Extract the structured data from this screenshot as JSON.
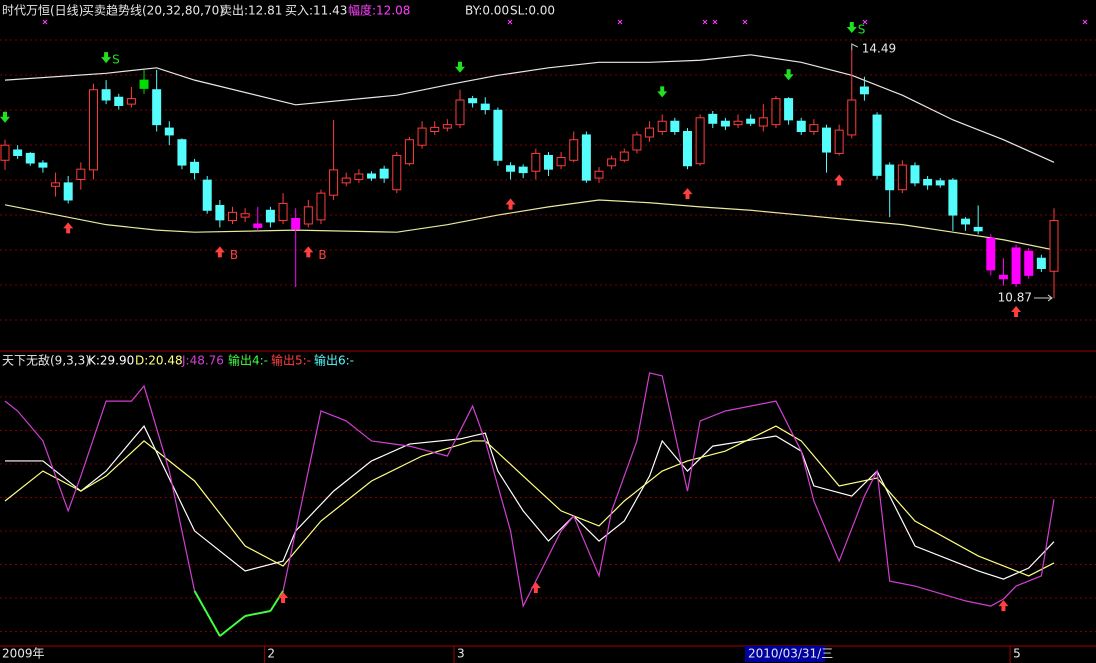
{
  "chart_data": [
    {
      "type": "candlestick",
      "title": "时代万恒(日线)",
      "indicator": "买卖趋势线(20,32,80,70)",
      "stats": [
        "卖出:12.81",
        "买入:11.43",
        "幅度:12.08",
        "BY:0.00",
        "SL:0.00"
      ],
      "open": [
        12.88,
        13.03,
        12.98,
        12.84,
        12.5,
        12.55,
        12.6,
        12.74,
        13.91,
        13.8,
        13.7,
        14.05,
        13.91,
        13.35,
        13.18,
        12.85,
        12.59,
        12.22,
        12.0,
        12.05,
        11.95,
        12.15,
        12.0,
        12.03,
        11.95,
        12.01,
        12.37,
        12.55,
        12.6,
        12.68,
        12.75,
        12.45,
        12.83,
        13.1,
        13.3,
        13.35,
        13.4,
        13.78,
        13.7,
        13.61,
        12.8,
        12.78,
        12.72,
        12.95,
        12.8,
        12.88,
        13.25,
        12.62,
        12.8,
        12.88,
        13.03,
        13.22,
        13.3,
        13.45,
        13.3,
        12.83,
        13.55,
        13.45,
        13.4,
        13.48,
        13.38,
        13.4,
        13.78,
        13.45,
        13.3,
        13.35,
        12.98,
        13.25,
        13.95,
        13.54,
        12.81,
        12.45,
        12.8,
        12.6,
        12.58,
        12.59,
        12.02,
        11.9,
        11.74,
        11.2,
        11.6,
        11.55,
        11.45,
        11.26
      ],
      "high": [
        13.18,
        13.1,
        13.0,
        12.88,
        12.7,
        12.65,
        12.85,
        14.0,
        14.05,
        13.85,
        13.95,
        14.2,
        14.2,
        13.45,
        13.2,
        12.9,
        12.65,
        12.3,
        12.2,
        12.18,
        12.2,
        12.2,
        12.4,
        12.18,
        12.3,
        12.45,
        13.47,
        12.7,
        12.75,
        12.72,
        12.8,
        13.0,
        13.22,
        13.45,
        13.45,
        13.48,
        13.91,
        13.82,
        13.8,
        13.65,
        12.85,
        12.82,
        13.05,
        13.0,
        13.0,
        13.3,
        13.3,
        12.78,
        12.95,
        13.05,
        13.3,
        13.45,
        13.55,
        13.5,
        13.35,
        13.55,
        13.6,
        13.5,
        13.55,
        13.55,
        13.7,
        13.82,
        13.8,
        13.5,
        13.48,
        13.4,
        13.4,
        14.49,
        14.1,
        13.58,
        12.85,
        12.88,
        12.85,
        12.65,
        12.62,
        12.62,
        12.05,
        12.22,
        11.8,
        11.45,
        11.65,
        11.6,
        11.5,
        12.18
      ],
      "low": [
        12.74,
        12.9,
        12.8,
        12.7,
        12.35,
        12.25,
        12.45,
        12.6,
        13.7,
        13.62,
        13.65,
        13.85,
        13.3,
        13.1,
        12.75,
        12.6,
        12.1,
        11.9,
        11.95,
        11.98,
        11.85,
        11.9,
        11.95,
        11.03,
        11.9,
        11.95,
        12.3,
        12.5,
        12.55,
        12.58,
        12.55,
        12.4,
        12.8,
        13.05,
        13.25,
        13.3,
        13.35,
        13.65,
        13.55,
        12.8,
        12.6,
        12.62,
        12.6,
        12.65,
        12.75,
        12.85,
        12.55,
        12.55,
        12.75,
        12.85,
        12.98,
        13.15,
        13.25,
        13.25,
        12.75,
        12.8,
        13.35,
        13.32,
        13.35,
        13.38,
        13.3,
        13.35,
        13.4,
        13.25,
        13.25,
        12.7,
        12.95,
        13.2,
        13.75,
        12.6,
        12.05,
        12.4,
        12.5,
        12.45,
        12.48,
        11.85,
        11.85,
        11.8,
        11.2,
        11.05,
        11.03,
        11.15,
        11.25,
        10.87
      ],
      "close": [
        13.1,
        12.95,
        12.84,
        12.78,
        12.55,
        12.3,
        12.75,
        13.91,
        13.76,
        13.68,
        13.78,
        13.93,
        13.4,
        13.25,
        12.81,
        12.7,
        12.15,
        12.01,
        12.12,
        12.1,
        11.9,
        11.98,
        12.25,
        11.88,
        12.2,
        12.4,
        12.74,
        12.62,
        12.68,
        12.62,
        12.62,
        12.95,
        13.18,
        13.35,
        13.36,
        13.4,
        13.76,
        13.72,
        13.62,
        12.88,
        12.72,
        12.7,
        12.98,
        12.75,
        12.92,
        13.18,
        12.59,
        12.72,
        12.9,
        13.0,
        13.25,
        13.35,
        13.45,
        13.3,
        12.8,
        13.5,
        13.42,
        13.38,
        13.45,
        13.42,
        13.5,
        13.78,
        13.47,
        13.3,
        13.4,
        13.0,
        13.32,
        13.76,
        13.85,
        12.66,
        12.45,
        12.81,
        12.55,
        12.52,
        12.52,
        12.08,
        11.95,
        11.85,
        11.28,
        11.15,
        11.08,
        11.2,
        11.3,
        12.0
      ],
      "up_color": "#ff3c3c",
      "down_color": "#54fcfc",
      "highlights": [
        {
          "color": "#ff00ff",
          "indices": [
            20,
            23,
            78,
            79,
            80,
            81
          ]
        },
        {
          "color": "#00dd00",
          "indices": [
            11
          ]
        }
      ],
      "bands": [
        {
          "color": "#e8e8e8",
          "x": [
            0,
            8,
            12,
            15,
            23,
            31,
            35,
            39,
            43,
            47,
            51,
            55,
            59,
            63,
            67,
            71,
            75,
            79,
            83
          ],
          "values": [
            14.05,
            14.15,
            14.23,
            14.05,
            13.69,
            13.83,
            13.98,
            14.12,
            14.23,
            14.31,
            14.31,
            14.34,
            14.42,
            14.31,
            14.12,
            13.83,
            13.47,
            13.18,
            12.85
          ]
        },
        {
          "color": "#e8e8a0",
          "x": [
            0,
            8,
            12,
            15,
            23,
            31,
            35,
            39,
            43,
            47,
            51,
            55,
            59,
            63,
            67,
            71,
            75,
            79,
            83
          ],
          "values": [
            12.23,
            11.94,
            11.86,
            11.83,
            11.86,
            11.83,
            11.94,
            12.08,
            12.2,
            12.3,
            12.26,
            12.2,
            12.15,
            12.08,
            12.01,
            11.94,
            11.83,
            11.72,
            11.57
          ]
        }
      ],
      "sell_color": "#20e020",
      "buy_color": "#ff4040",
      "sell_signals": [
        {
          "index": 0
        },
        {
          "index": 8,
          "label": "S"
        },
        {
          "index": 36
        },
        {
          "index": 52
        },
        {
          "index": 62
        },
        {
          "index": 67,
          "label": "S"
        }
      ],
      "buy_signals": [
        {
          "index": 5
        },
        {
          "index": 17,
          "label": "B"
        },
        {
          "index": 24,
          "label": "B"
        },
        {
          "index": 40
        },
        {
          "index": 54
        },
        {
          "index": 66
        },
        {
          "index": 80
        }
      ],
      "xlim": [
        0,
        83
      ],
      "ylim": [
        10.11,
        15.22
      ],
      "grid": true
    },
    {
      "type": "line",
      "title": "天下无敌(9,3,3)",
      "stats": [
        "输出4:-",
        "输出5:-",
        "输出6:-"
      ],
      "series": [
        {
          "name": "K:29.90",
          "color": "#ffffff",
          "x": [
            0,
            3,
            6,
            8,
            10,
            11,
            15,
            19,
            22,
            23,
            26,
            29,
            32,
            36,
            38,
            39,
            41,
            43,
            45,
            47,
            49,
            51,
            52,
            54,
            56,
            61,
            63,
            64,
            67,
            69,
            72,
            77,
            79,
            81,
            83
          ],
          "values": [
            65.8,
            65.8,
            52.4,
            61.3,
            74.7,
            81.3,
            34.7,
            16.9,
            21.3,
            34.7,
            52.4,
            65.8,
            73.3,
            75.6,
            78.2,
            61.3,
            43.6,
            30.2,
            41.3,
            30.2,
            39.1,
            59.1,
            74.7,
            61.3,
            72.4,
            76.9,
            70.2,
            54.7,
            50.2,
            61.3,
            28.0,
            16.9,
            13.3,
            18.2,
            29.9
          ]
        },
        {
          "name": "D:20.48",
          "color": "#ffff80",
          "x": [
            0,
            3,
            6,
            8,
            11,
            15,
            19,
            22,
            25,
            29,
            33,
            37,
            38,
            41,
            44,
            47,
            49,
            52,
            54,
            57,
            61,
            63,
            66,
            69,
            72,
            77,
            81,
            83
          ],
          "values": [
            48.0,
            61.3,
            52.4,
            59.1,
            74.7,
            56.9,
            28.0,
            19.1,
            39.1,
            56.9,
            68.0,
            74.7,
            74.7,
            59.1,
            43.6,
            36.9,
            48.0,
            61.3,
            65.8,
            70.2,
            81.3,
            74.7,
            54.7,
            58.2,
            39.1,
            23.6,
            14.7,
            20.48
          ]
        },
        {
          "name": "J:48.76",
          "color": "#d040d0",
          "low_color": "#40ff40",
          "x": [
            0,
            1,
            3,
            5,
            6,
            8,
            10,
            11,
            13,
            15,
            17,
            19,
            21,
            22,
            23,
            25,
            27,
            29,
            32,
            35,
            37,
            38,
            40,
            41,
            42,
            44,
            45,
            47,
            48,
            50,
            51,
            52,
            54,
            55,
            57,
            61,
            63,
            64,
            66,
            68,
            69,
            70,
            72,
            76,
            78,
            79,
            80,
            82,
            83
          ],
          "values": [
            92.4,
            88.0,
            74.7,
            43.6,
            59.1,
            92.4,
            92.4,
            99.1,
            61.3,
            8.0,
            -12.0,
            -3.1,
            -0.9,
            8.0,
            34.7,
            88.0,
            83.6,
            74.7,
            72.4,
            68.0,
            90.2,
            74.7,
            34.7,
            1.3,
            12.4,
            34.7,
            41.3,
            14.7,
            43.6,
            74.7,
            104.9,
            103.6,
            52.4,
            83.6,
            88.0,
            92.4,
            70.2,
            48.0,
            21.3,
            50.2,
            61.3,
            12.4,
            10.2,
            3.6,
            1.3,
            4.4,
            10.2,
            14.7,
            48.76
          ]
        }
      ],
      "buy_signals": [
        22,
        42,
        79
      ],
      "xlim": [
        0,
        83
      ],
      "ylim": [
        -16,
        112
      ],
      "grid": true,
      "xticks": [
        {
          "value": 0,
          "label": "2009年"
        },
        {
          "value": 21,
          "label": "2"
        },
        {
          "value": 36,
          "label": "3"
        },
        {
          "value": 80,
          "label": "5"
        }
      ],
      "cursor_label": "2010/03/31/三"
    }
  ]
}
